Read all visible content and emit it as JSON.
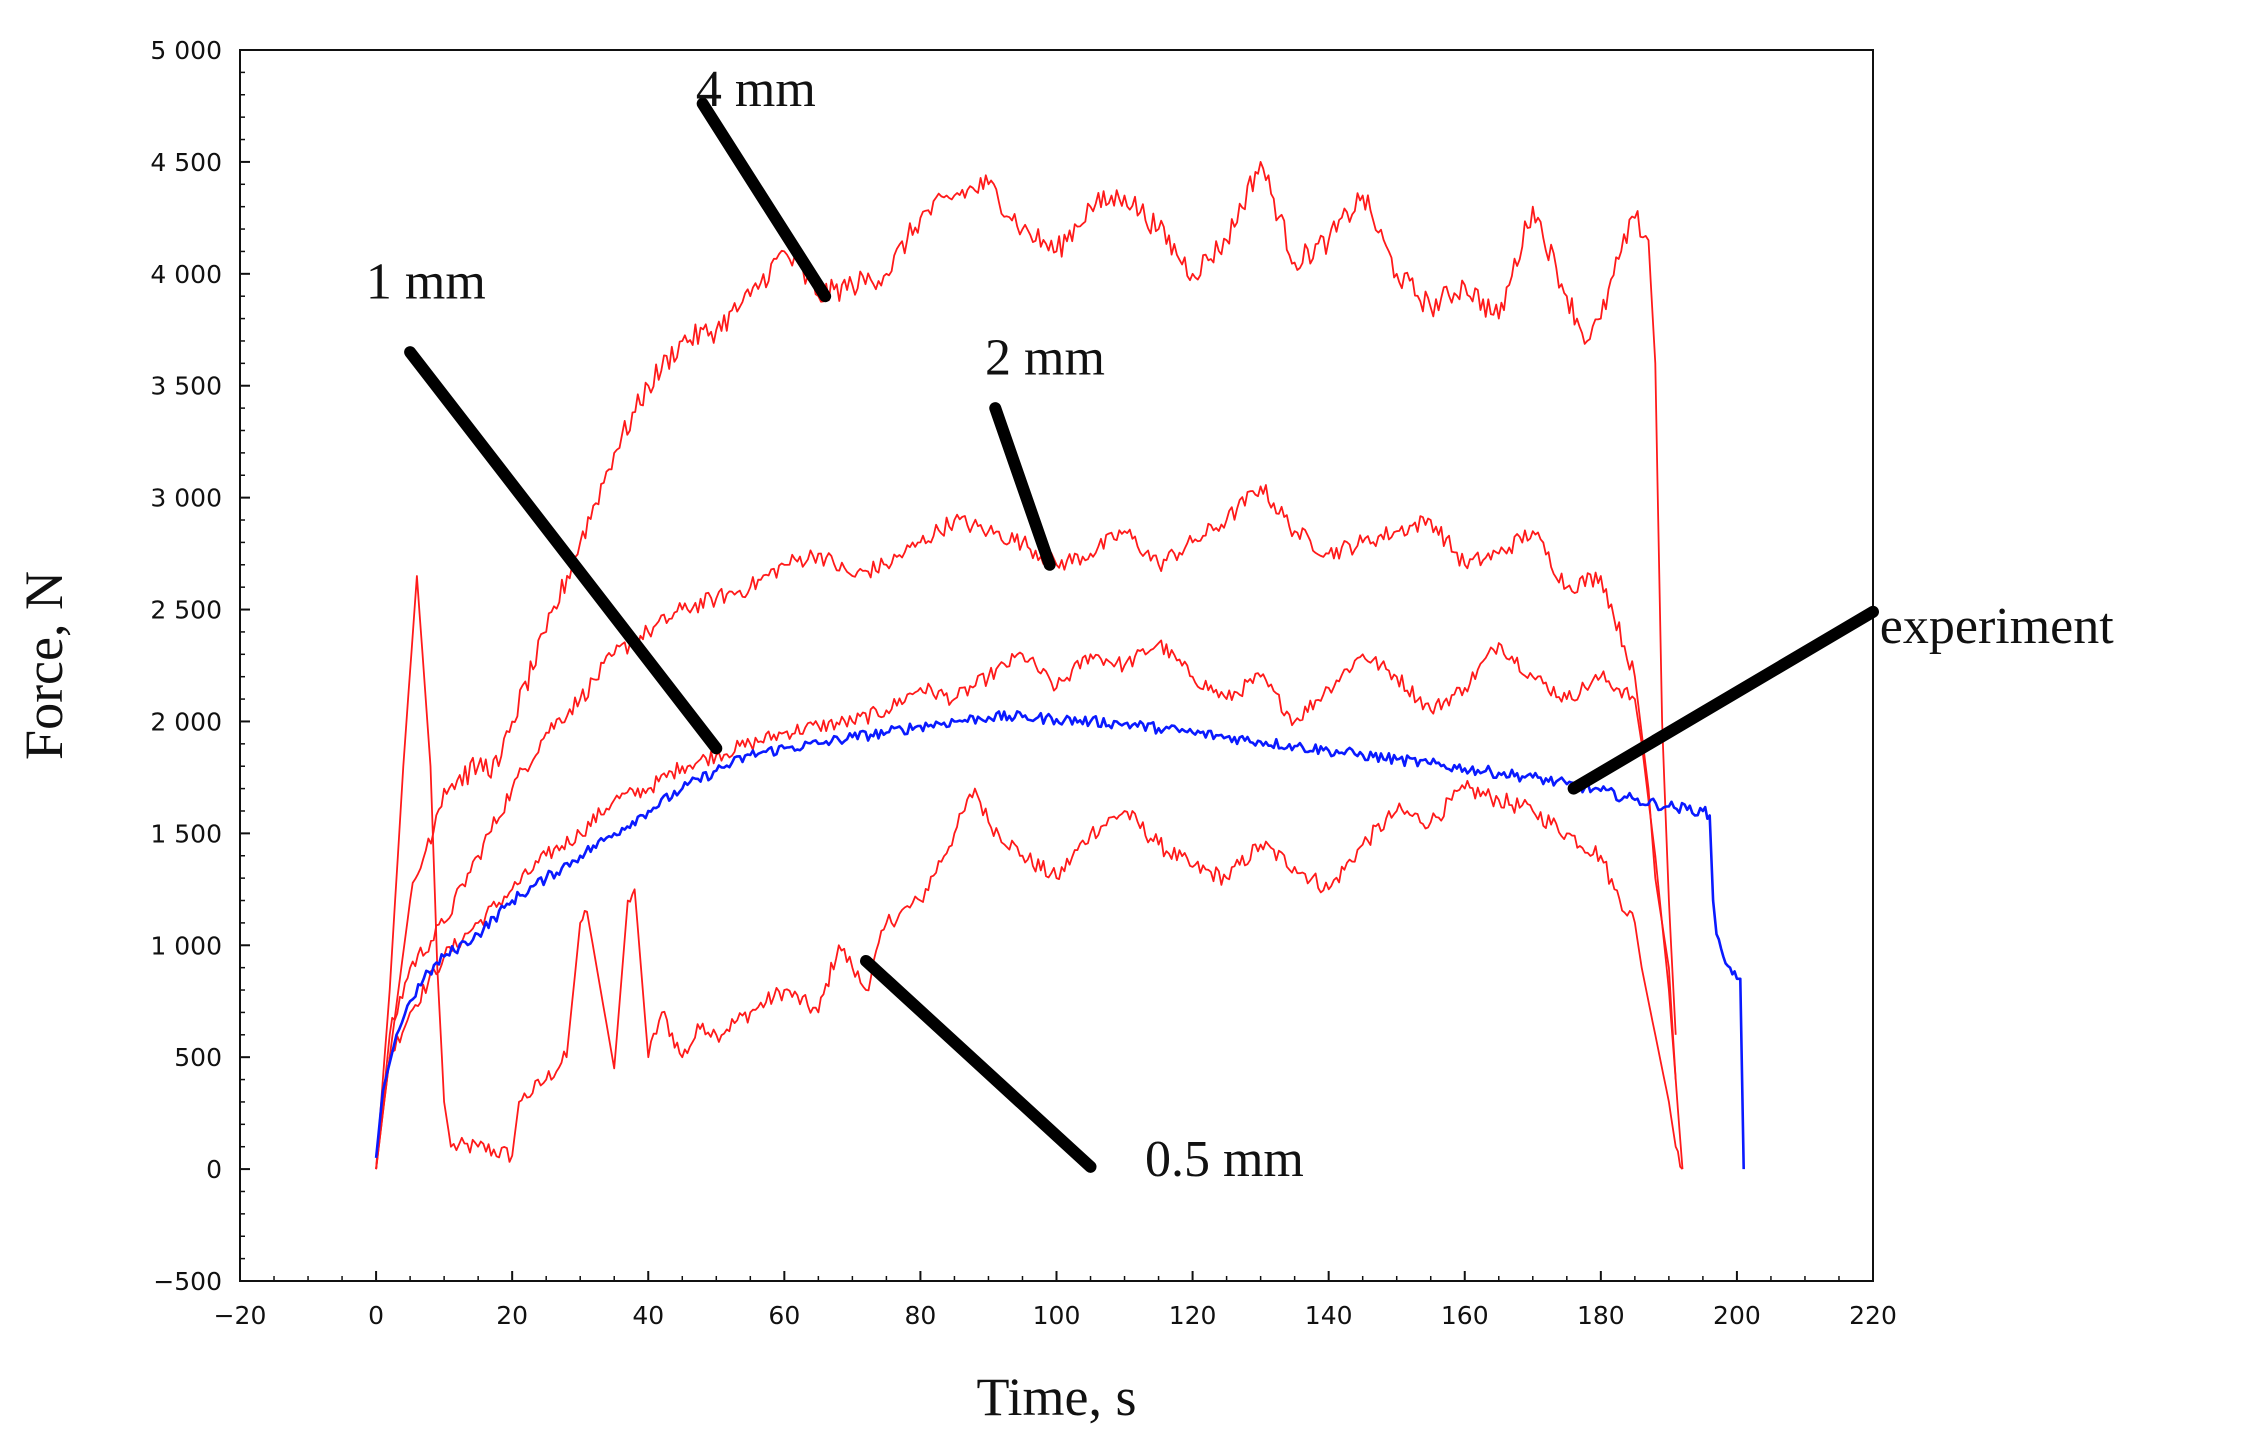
{
  "chart_data": {
    "type": "line",
    "title": "",
    "xlabel": "Time, s",
    "ylabel": "Force, N",
    "xlim": [
      -20,
      220
    ],
    "ylim": [
      -500,
      5000
    ],
    "xticks": [
      -20,
      0,
      20,
      40,
      60,
      80,
      100,
      120,
      140,
      160,
      180,
      200,
      220
    ],
    "yticks": [
      -500,
      0,
      500,
      1000,
      1500,
      2000,
      2500,
      3000,
      3500,
      4000,
      4500,
      5000
    ],
    "xtick_labels": [
      "−20",
      "0",
      "20",
      "40",
      "60",
      "80",
      "100",
      "120",
      "140",
      "160",
      "180",
      "200",
      "220"
    ],
    "ytick_labels": [
      "−500",
      "0",
      "500",
      "1 000",
      "1 500",
      "2 000",
      "2 500",
      "3 000",
      "3 500",
      "4 000",
      "4 500",
      "5 000"
    ],
    "colors": {
      "simulation": "#ff1a1a",
      "experiment": "#0a1aff",
      "pointer": "#000000"
    },
    "series": [
      {
        "name": "0.5 mm",
        "color": "#ff1a1a",
        "noise": 40,
        "x": [
          0,
          2,
          4,
          6,
          8,
          9,
          10,
          11,
          15,
          20,
          21,
          25,
          28,
          30,
          31,
          33,
          35,
          37,
          38,
          40,
          42,
          45,
          48,
          50,
          55,
          60,
          65,
          68,
          70,
          72,
          75,
          80,
          85,
          88,
          90,
          95,
          100,
          105,
          110,
          115,
          120,
          125,
          130,
          135,
          140,
          145,
          150,
          155,
          160,
          165,
          170,
          175,
          180,
          182,
          185,
          186,
          188,
          190,
          191,
          192
        ],
        "y": [
          0,
          800,
          1800,
          2650,
          1800,
          900,
          300,
          100,
          100,
          60,
          300,
          400,
          500,
          1100,
          1150,
          800,
          450,
          1200,
          1250,
          500,
          700,
          500,
          650,
          600,
          700,
          800,
          700,
          1000,
          900,
          800,
          1100,
          1200,
          1500,
          1700,
          1550,
          1400,
          1300,
          1500,
          1600,
          1450,
          1350,
          1300,
          1450,
          1350,
          1250,
          1450,
          1600,
          1550,
          1700,
          1650,
          1600,
          1500,
          1400,
          1250,
          1100,
          900,
          600,
          300,
          100,
          0
        ]
      },
      {
        "name": "1 mm",
        "color": "#ff1a1a",
        "noise": 35,
        "x": [
          0,
          2,
          5,
          10,
          15,
          20,
          25,
          30,
          35,
          40,
          45,
          50,
          55,
          60,
          65,
          70,
          75,
          80,
          85,
          90,
          95,
          100,
          105,
          110,
          115,
          120,
          125,
          130,
          135,
          140,
          145,
          150,
          155,
          160,
          165,
          170,
          175,
          180,
          185,
          186,
          188,
          190,
          191
        ],
        "y": [
          0,
          500,
          700,
          950,
          1100,
          1250,
          1400,
          1500,
          1650,
          1700,
          1800,
          1850,
          1900,
          1950,
          1980,
          2000,
          2050,
          2150,
          2100,
          2200,
          2300,
          2150,
          2300,
          2250,
          2350,
          2200,
          2100,
          2200,
          2000,
          2150,
          2300,
          2200,
          2050,
          2150,
          2350,
          2200,
          2100,
          2200,
          2100,
          1900,
          1400,
          800,
          400
        ]
      },
      {
        "name": "2 mm",
        "color": "#ff1a1a",
        "noise": 40,
        "x": [
          0,
          2,
          5,
          10,
          15,
          20,
          25,
          30,
          35,
          40,
          45,
          50,
          55,
          60,
          65,
          70,
          75,
          80,
          85,
          90,
          95,
          100,
          105,
          110,
          115,
          120,
          125,
          130,
          135,
          140,
          145,
          150,
          155,
          160,
          165,
          170,
          175,
          180,
          185,
          187,
          188,
          189,
          190,
          191,
          192
        ],
        "y": [
          0,
          600,
          900,
          1100,
          1400,
          1700,
          1950,
          2100,
          2300,
          2400,
          2500,
          2550,
          2600,
          2700,
          2750,
          2650,
          2700,
          2800,
          2900,
          2850,
          2800,
          2700,
          2750,
          2850,
          2700,
          2800,
          2900,
          3050,
          2850,
          2750,
          2800,
          2850,
          2900,
          2700,
          2750,
          2850,
          2600,
          2650,
          2200,
          1700,
          1300,
          1100,
          900,
          400,
          0
        ]
      },
      {
        "name": "4 mm",
        "color": "#ff1a1a",
        "noise": 55,
        "x": [
          0,
          2,
          5,
          10,
          15,
          18,
          20,
          25,
          30,
          35,
          40,
          45,
          50,
          55,
          60,
          65,
          70,
          75,
          80,
          85,
          90,
          95,
          100,
          105,
          110,
          115,
          120,
          125,
          130,
          135,
          140,
          145,
          150,
          155,
          160,
          165,
          170,
          175,
          178,
          180,
          183,
          185,
          187,
          188,
          189,
          190,
          191
        ],
        "y": [
          0,
          500,
          1200,
          1700,
          1800,
          1800,
          2000,
          2400,
          2800,
          3200,
          3500,
          3700,
          3750,
          3900,
          4100,
          3900,
          3950,
          4000,
          4250,
          4350,
          4400,
          4200,
          4100,
          4300,
          4350,
          4200,
          4000,
          4150,
          4500,
          4050,
          4150,
          4350,
          4000,
          3850,
          3950,
          3800,
          4300,
          3900,
          3700,
          3800,
          4100,
          4250,
          4150,
          3600,
          2000,
          1200,
          600
        ]
      },
      {
        "name": "experiment",
        "color": "#0a1aff",
        "noise": 25,
        "x": [
          0,
          1,
          3,
          5,
          7,
          10,
          15,
          20,
          25,
          30,
          35,
          40,
          45,
          50,
          55,
          60,
          65,
          70,
          75,
          80,
          85,
          90,
          95,
          100,
          105,
          110,
          115,
          120,
          125,
          130,
          135,
          140,
          145,
          150,
          155,
          160,
          165,
          170,
          175,
          180,
          185,
          190,
          195,
          196,
          196.5,
          197,
          198,
          199,
          200,
          200.5,
          201
        ],
        "y": [
          50,
          350,
          600,
          750,
          850,
          950,
          1050,
          1200,
          1300,
          1400,
          1500,
          1600,
          1700,
          1780,
          1850,
          1880,
          1900,
          1930,
          1950,
          1980,
          2000,
          2020,
          2020,
          2010,
          2000,
          1990,
          1970,
          1950,
          1930,
          1910,
          1890,
          1870,
          1850,
          1830,
          1810,
          1790,
          1770,
          1750,
          1720,
          1690,
          1650,
          1620,
          1600,
          1580,
          1200,
          1050,
          950,
          900,
          850,
          850,
          0
        ]
      }
    ],
    "annotations": [
      {
        "label": "4 mm",
        "x": 47,
        "y": 4750
      },
      {
        "label": "1 mm",
        "x": -1.5,
        "y": 3890
      },
      {
        "label": "2 mm",
        "x": 89.5,
        "y": 3550
      },
      {
        "label": "experiment",
        "x": 221,
        "y": 2350
      },
      {
        "label": "0.5 mm",
        "x": 113,
        "y": -30
      }
    ],
    "pointers": [
      {
        "target": "4 mm",
        "from": [
          48,
          4760
        ],
        "to": [
          66,
          3900
        ]
      },
      {
        "target": "1 mm",
        "from": [
          5,
          3650
        ],
        "to": [
          50,
          1880
        ]
      },
      {
        "target": "2 mm",
        "from": [
          91,
          3400
        ],
        "to": [
          99,
          2700
        ]
      },
      {
        "target": "experiment",
        "from": [
          220,
          2490
        ],
        "to": [
          176,
          1700
        ]
      },
      {
        "target": "0.5 mm",
        "from": [
          105,
          10
        ],
        "to": [
          72,
          930
        ]
      }
    ]
  }
}
